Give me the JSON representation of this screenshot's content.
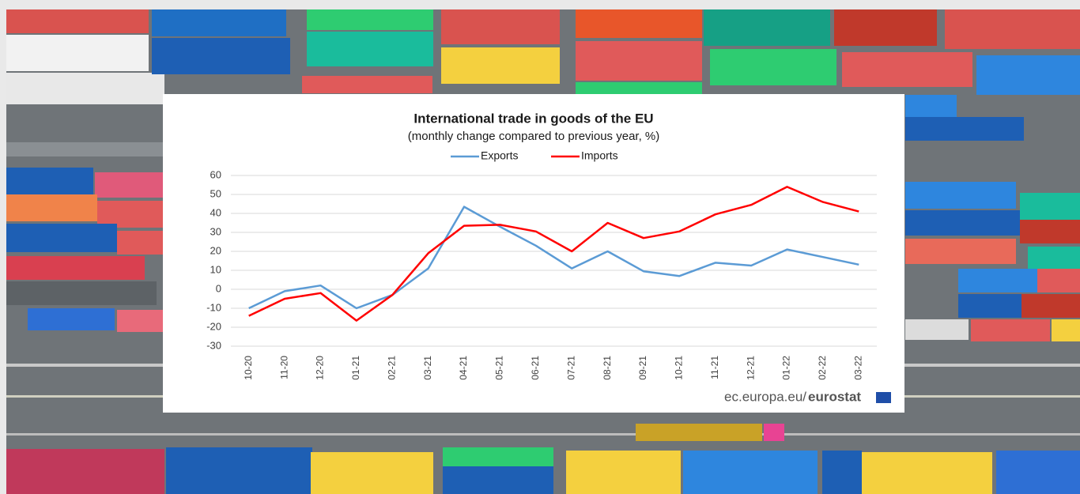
{
  "chart_data": {
    "type": "line",
    "title": "International trade in goods of the EU",
    "subtitle": "(monthly change compared to previous year, %)",
    "categories": [
      "10-20",
      "11-20",
      "12-20",
      "01-21",
      "02-21",
      "03-21",
      "04-21",
      "05-21",
      "06-21",
      "07-21",
      "08-21",
      "09-21",
      "10-21",
      "11-21",
      "12-21",
      "01-22",
      "02-22",
      "03-22"
    ],
    "series": [
      {
        "name": "Exports",
        "color": "#5b9bd5",
        "values": [
          -10,
          -1,
          2,
          -10,
          -3,
          11,
          43.5,
          33,
          23,
          11,
          20,
          9.5,
          7,
          14,
          12.5,
          21,
          17,
          13
        ]
      },
      {
        "name": "Imports",
        "color": "#ff0000",
        "values": [
          -14,
          -5,
          -2,
          -16.5,
          -3,
          19,
          33.5,
          34,
          30.5,
          20,
          35,
          27,
          30.5,
          39.5,
          44.5,
          54,
          46,
          41
        ]
      }
    ],
    "ylim": [
      -30,
      60
    ],
    "yticks": [
      -30,
      -20,
      -10,
      0,
      10,
      20,
      30,
      40,
      50,
      60
    ],
    "grid": true,
    "legend": "top",
    "source": "ec.europa.eu/",
    "source_brand": "eurostat"
  }
}
